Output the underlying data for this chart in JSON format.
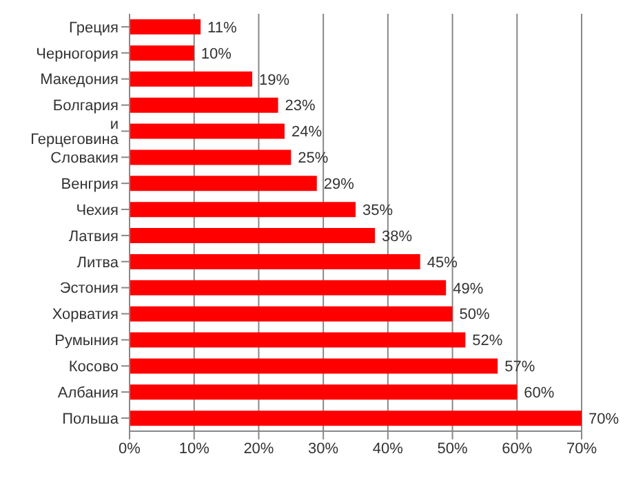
{
  "chart_data": {
    "type": "bar",
    "orientation": "horizontal",
    "categories": [
      "Греция",
      "Черногория",
      "Македония",
      "Болгария",
      "и Герцеговина",
      "Словакия",
      "Венгрия",
      "Чехия",
      "Латвия",
      "Литва",
      "Эстония",
      "Хорватия",
      "Румыния",
      "Косово",
      "Албания",
      "Польша"
    ],
    "values": [
      11,
      10,
      19,
      23,
      24,
      25,
      29,
      35,
      38,
      45,
      49,
      50,
      52,
      57,
      60,
      70
    ],
    "value_labels": [
      "11%",
      "10%",
      "19%",
      "23%",
      "24%",
      "25%",
      "29%",
      "35%",
      "38%",
      "45%",
      "49%",
      "50%",
      "52%",
      "57%",
      "60%",
      "70%"
    ],
    "color": "#ff0000",
    "xlim": [
      0,
      70
    ],
    "xticks": [
      {
        "value": 0,
        "label": "0%"
      },
      {
        "value": 10,
        "label": "10%"
      },
      {
        "value": 20,
        "label": "20%"
      },
      {
        "value": 30,
        "label": "30%"
      },
      {
        "value": 40,
        "label": "40%"
      },
      {
        "value": 50,
        "label": "50%"
      },
      {
        "value": 60,
        "label": "60%"
      },
      {
        "value": 70,
        "label": "70%"
      }
    ],
    "grid": "x"
  }
}
